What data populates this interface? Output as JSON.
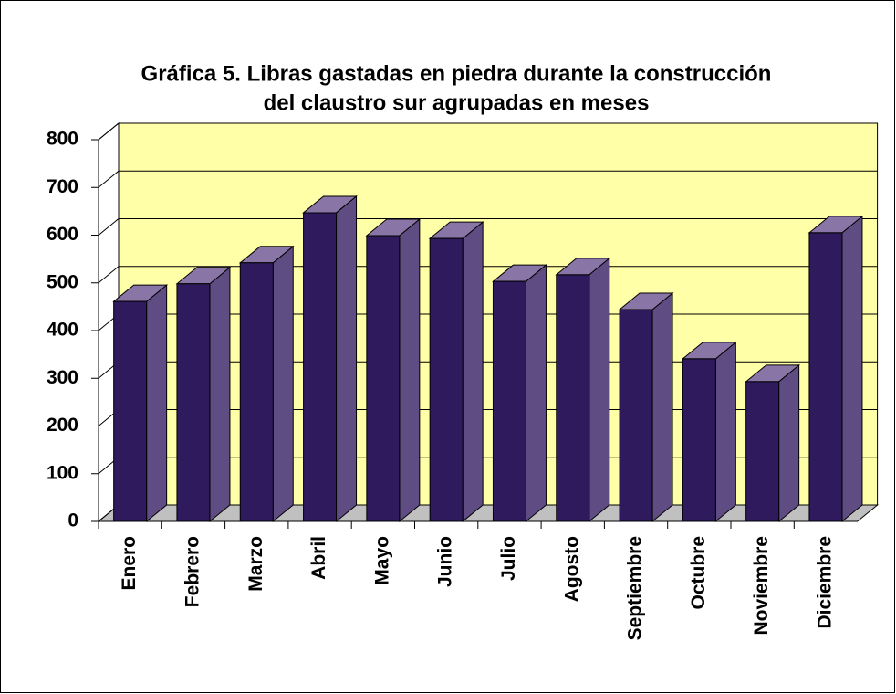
{
  "chart_data": {
    "type": "bar3d",
    "title": [
      "Gráfica 5. Libras gastadas en piedra durante la construcción",
      "del claustro sur agrupadas en meses"
    ],
    "categories": [
      "Enero",
      "Febrero",
      "Marzo",
      "Abril",
      "Mayo",
      "Junio",
      "Julio",
      "Agosto",
      "Septiembre",
      "Octubre",
      "Noviembre",
      "Diciembre"
    ],
    "values": [
      461,
      498,
      542,
      647,
      599,
      593,
      503,
      517,
      444,
      341,
      293,
      605
    ],
    "color": "#2e1a5c",
    "ylim": [
      0,
      800
    ],
    "yticks": [
      0,
      100,
      200,
      300,
      400,
      500,
      600,
      700,
      800
    ],
    "grid": true
  }
}
